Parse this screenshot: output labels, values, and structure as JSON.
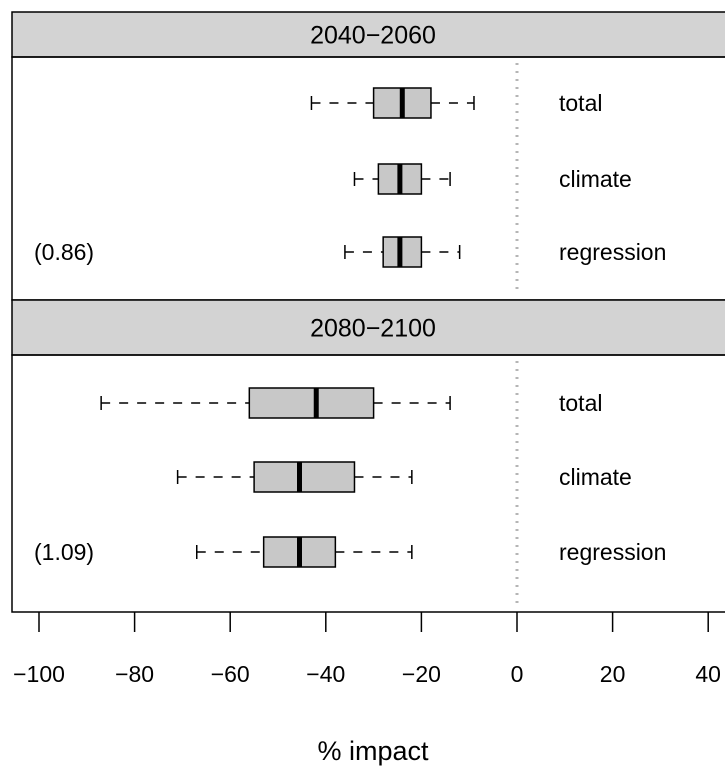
{
  "chart_data": {
    "type": "boxplot",
    "xlabel": "% impact",
    "xlim": [
      -100,
      40
    ],
    "x_ticks": [
      -100,
      -80,
      -60,
      -40,
      -20,
      0,
      20,
      40
    ],
    "x_tick_labels": [
      "−100",
      "−80",
      "−60",
      "−40",
      "−20",
      "0",
      "20",
      "40"
    ],
    "reference_line": 0,
    "panels": [
      {
        "title": "2040−2060",
        "annotation": "(0.86)",
        "rows": [
          {
            "label": "total",
            "min": -43,
            "q1": -30,
            "median": -24,
            "q3": -18,
            "max": -9
          },
          {
            "label": "climate",
            "min": -34,
            "q1": -29,
            "median": -24.5,
            "q3": -20,
            "max": -14
          },
          {
            "label": "regression",
            "min": -36,
            "q1": -28,
            "median": -24.5,
            "q3": -20,
            "max": -12
          }
        ]
      },
      {
        "title": "2080−2100",
        "annotation": "(1.09)",
        "rows": [
          {
            "label": "total",
            "min": -87,
            "q1": -56,
            "median": -42,
            "q3": -30,
            "max": -14
          },
          {
            "label": "climate",
            "min": -71,
            "q1": -55,
            "median": -45.5,
            "q3": -34,
            "max": -22
          },
          {
            "label": "regression",
            "min": -67,
            "q1": -53,
            "median": -45.5,
            "q3": -38,
            "max": -22
          }
        ]
      }
    ]
  }
}
